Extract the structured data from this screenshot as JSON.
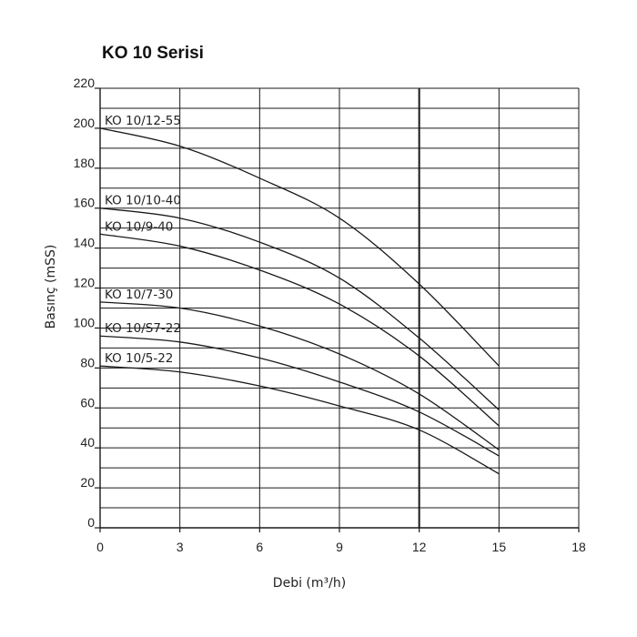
{
  "chart_data": {
    "type": "line",
    "title": "KO 10 Serisi",
    "xlabel": "Debi (m³/h)",
    "ylabel": "Basınç (mSS)",
    "xlim": [
      0,
      18
    ],
    "ylim": [
      0,
      220
    ],
    "x_ticks": [
      "0",
      "3",
      "6",
      "9",
      "12",
      "15",
      "18"
    ],
    "y_ticks": [
      "0",
      "20",
      "40",
      "60",
      "80",
      "100",
      "120",
      "140",
      "160",
      "180",
      "200",
      "220"
    ],
    "grid": true,
    "minor_y_grid_step": 10,
    "emphasized_x_gridline": 12,
    "line_color": "#1a1a1a",
    "series": [
      {
        "name": "KO 10/12-55",
        "x": [
          0,
          3,
          6,
          9,
          12,
          15
        ],
        "y": [
          200,
          191,
          175,
          155,
          122,
          81
        ]
      },
      {
        "name": "KO 10/10-40",
        "x": [
          0,
          3,
          6,
          9,
          12,
          15
        ],
        "y": [
          160,
          155,
          143,
          125,
          95,
          59
        ]
      },
      {
        "name": "KO 10/9-40",
        "x": [
          0,
          3,
          6,
          9,
          12,
          15
        ],
        "y": [
          147,
          141,
          129,
          112,
          86,
          51
        ]
      },
      {
        "name": "KO 10/7-30",
        "x": [
          0,
          3,
          6,
          9,
          12,
          15
        ],
        "y": [
          113,
          110,
          101,
          87,
          67,
          39
        ]
      },
      {
        "name": "KO 10/S7-22",
        "x": [
          0,
          3,
          6,
          9,
          12,
          15
        ],
        "y": [
          96,
          93,
          85,
          73,
          58,
          36
        ]
      },
      {
        "name": "KO 10/5-22",
        "x": [
          0,
          3,
          6,
          9,
          12,
          15
        ],
        "y": [
          81,
          78,
          71,
          61,
          49,
          27
        ]
      }
    ]
  }
}
